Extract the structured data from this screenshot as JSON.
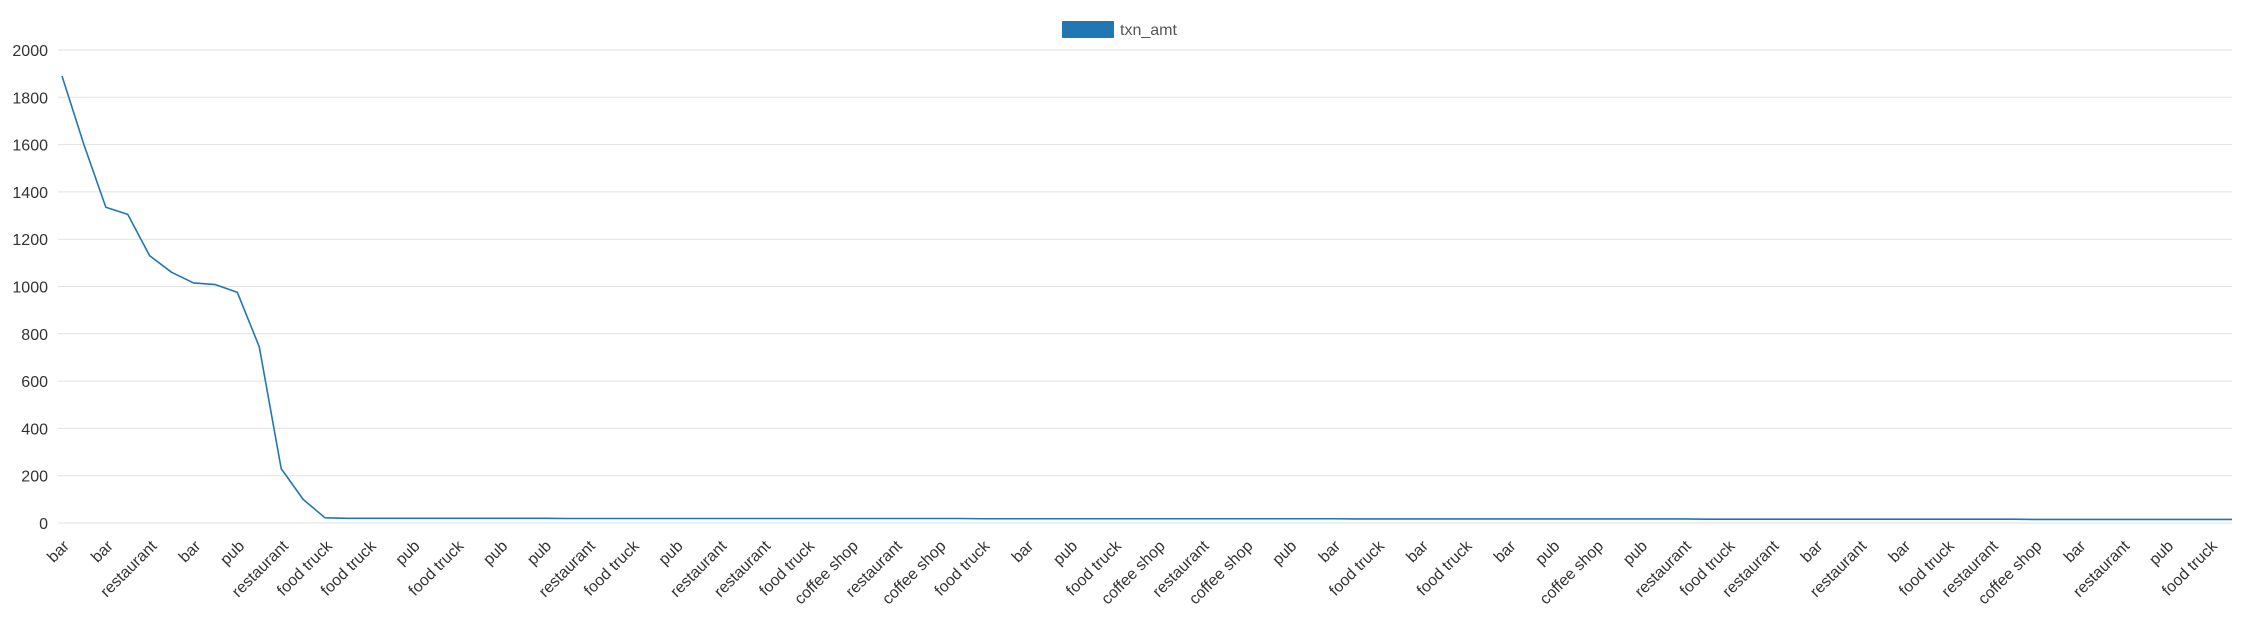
{
  "chart_data": {
    "type": "line",
    "title": "",
    "xlabel": "",
    "ylabel": "",
    "ylim": [
      0,
      2000
    ],
    "yticks": [
      0,
      200,
      400,
      600,
      800,
      1000,
      1200,
      1400,
      1600,
      1800,
      2000
    ],
    "grid": true,
    "legend_position": "top-center",
    "series": [
      {
        "name": "txn_amt",
        "color": "#2077b4",
        "values": [
          1890,
          1600,
          1335,
          1305,
          1130,
          1060,
          1015,
          1008,
          975,
          745,
          230,
          100,
          22,
          20,
          20,
          20,
          20,
          20,
          20,
          20,
          20,
          20,
          20,
          19,
          19,
          19,
          19,
          19,
          19,
          19,
          19,
          19,
          19,
          19,
          19,
          19,
          19,
          19,
          19,
          19,
          19,
          19,
          18,
          18,
          18,
          18,
          18,
          18,
          18,
          18,
          18,
          18,
          18,
          18,
          18,
          18,
          18,
          18,
          18,
          17,
          17,
          17,
          17,
          17,
          17,
          17,
          17,
          17,
          17,
          17,
          17,
          17,
          17,
          17,
          17,
          16,
          16,
          16,
          16,
          16,
          16,
          16,
          16,
          16,
          16,
          16,
          16,
          16,
          16,
          16,
          15,
          15,
          15,
          15,
          15,
          15,
          15,
          15,
          15,
          15
        ]
      }
    ],
    "tick_step": 2,
    "x_tick_labels": [
      "bar",
      "bar",
      "restaurant",
      "bar",
      "pub",
      "restaurant",
      "food truck",
      "food truck",
      "pub",
      "food truck",
      "pub",
      "pub",
      "restaurant",
      "food truck",
      "pub",
      "restaurant",
      "restaurant",
      "food truck",
      "coffee shop",
      "restaurant",
      "coffee shop",
      "food truck",
      "bar",
      "pub",
      "food truck",
      "coffee shop",
      "restaurant",
      "coffee shop",
      "pub",
      "bar",
      "food truck",
      "bar",
      "food truck",
      "bar",
      "pub",
      "coffee shop",
      "pub",
      "restaurant",
      "food truck",
      "restaurant",
      "bar",
      "restaurant",
      "bar",
      "food truck",
      "restaurant",
      "coffee shop",
      "bar",
      "restaurant",
      "pub",
      "food truck"
    ]
  }
}
